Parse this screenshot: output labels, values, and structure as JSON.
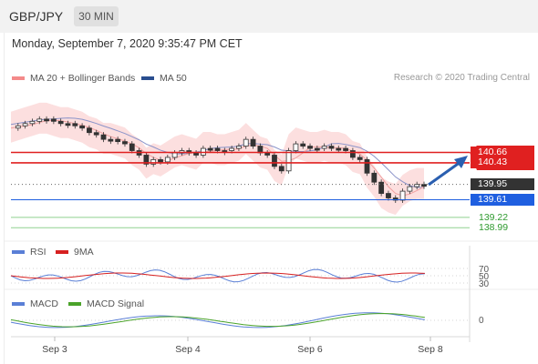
{
  "header": {
    "pair": "GBP/JPY",
    "timeframe": "30 MIN"
  },
  "datetime": "Monday, September 7, 2020 9:35:47 PM CET",
  "legend_price": [
    {
      "label": "MA 20 + Bollinger Bands",
      "color": "#f48a8a"
    },
    {
      "label": "MA 50",
      "color": "#2a4e8f"
    }
  ],
  "credit": "Research © 2020 Trading Central",
  "legend_rsi": [
    {
      "label": "RSI",
      "color": "#5a7fd6"
    },
    {
      "label": "9MA",
      "color": "#d62020"
    }
  ],
  "legend_macd": [
    {
      "label": "MACD",
      "color": "#5a7fd6"
    },
    {
      "label": "MACD Signal",
      "color": "#4aa32a"
    }
  ],
  "chart_data": {
    "type": "candlestick",
    "symbol": "GBP/JPY",
    "x_ticks": [
      "Sep 3",
      "Sep 4",
      "Sep 6",
      "Sep 8"
    ],
    "levels": [
      {
        "value": 140.66,
        "label": "140.66",
        "role": "resistance",
        "color": "#e02020"
      },
      {
        "value": 140.43,
        "label": "140.43",
        "role": "resistance",
        "color": "#e02020"
      },
      {
        "value": 139.95,
        "label": "139.95",
        "role": "last_price",
        "color": "#333333"
      },
      {
        "value": 139.61,
        "label": "139.61",
        "role": "support",
        "color": "#1f5fe0"
      },
      {
        "value": 139.22,
        "label": "139.22",
        "role": "support",
        "color": "#6cc46c"
      },
      {
        "value": 138.99,
        "label": "138.99",
        "role": "support",
        "color": "#6cc46c"
      }
    ],
    "close_series": [
      141.2,
      141.25,
      141.3,
      141.35,
      141.4,
      141.4,
      141.35,
      141.3,
      141.3,
      141.25,
      141.2,
      141.1,
      141.05,
      140.95,
      140.95,
      140.9,
      140.85,
      140.7,
      140.6,
      140.4,
      140.5,
      140.45,
      140.55,
      140.65,
      140.7,
      140.65,
      140.6,
      140.75,
      140.75,
      140.7,
      140.7,
      140.75,
      140.8,
      140.95,
      140.8,
      140.65,
      140.6,
      140.35,
      140.25,
      140.7,
      140.85,
      140.8,
      140.75,
      140.75,
      140.8,
      140.75,
      140.75,
      140.7,
      140.55,
      140.5,
      140.2,
      140.0,
      139.75,
      139.65,
      139.6,
      139.8,
      139.9,
      139.95,
      139.95
    ],
    "rsi": {
      "levels": [
        70,
        50,
        30
      ]
    },
    "macd": {
      "levels": [
        0
      ]
    },
    "annotation": "arrow_up_towards_140.66"
  }
}
